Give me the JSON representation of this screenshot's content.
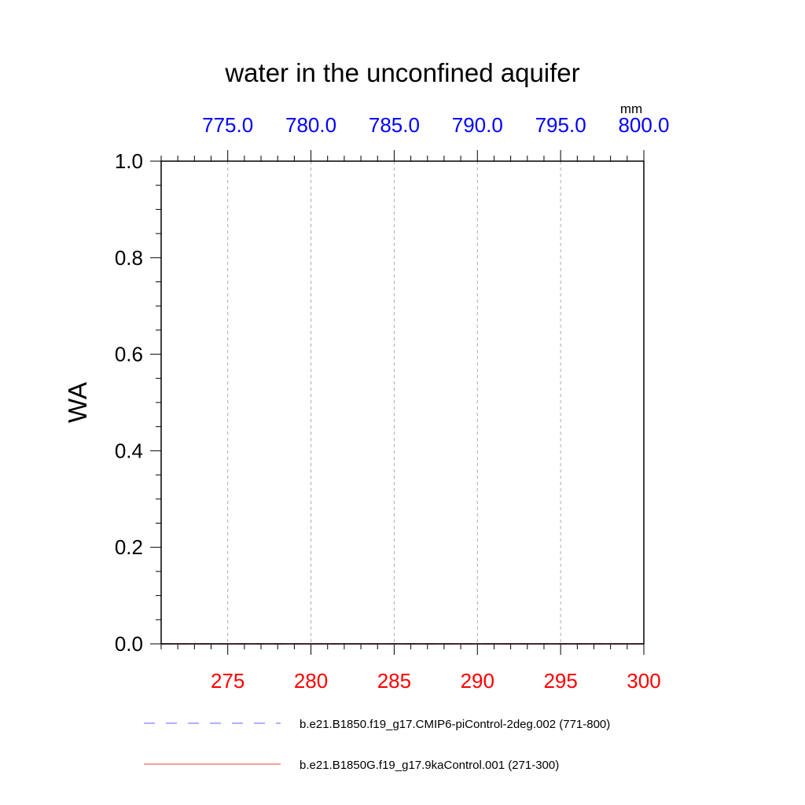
{
  "chart_data": {
    "type": "line",
    "title": "water in the unconfined aquifer",
    "ylabel": "WA",
    "top_axis_units": "mm",
    "ylim": [
      0,
      1
    ],
    "yticks": [
      "0.0",
      "0.2",
      "0.4",
      "0.6",
      "0.8",
      "1.0"
    ],
    "bottom_xlim": [
      271,
      300
    ],
    "bottom_xticks": [
      "275",
      "280",
      "285",
      "290",
      "295",
      "300"
    ],
    "top_xlim": [
      771,
      800
    ],
    "top_xticks": [
      "775.0",
      "780.0",
      "785.0",
      "790.0",
      "795.0",
      "800.0"
    ],
    "grid": "vertical dashed at major x ticks",
    "legend_placement": "bottom",
    "colors": {
      "bottom_axis": "#ff0000",
      "top_axis": "#0000ff",
      "series_top": "#8080ff",
      "series_bottom": "#ff6060"
    },
    "series": [
      {
        "name": "b.e21.B1850.f19_g17.CMIP6-piControl-2deg.002 (771-800)",
        "axis": "top",
        "style": "dashed",
        "x": [
          771,
          772,
          773,
          774,
          775,
          776,
          777,
          778,
          779,
          780,
          781,
          782,
          783,
          784,
          785,
          786,
          787,
          788,
          789,
          790,
          791,
          792,
          793,
          794,
          795,
          796,
          797,
          798,
          799,
          800
        ],
        "values": [
          0,
          0,
          0,
          0,
          0,
          0,
          0,
          0,
          0,
          0,
          0,
          0,
          0,
          0,
          0,
          0,
          0,
          0,
          0,
          0,
          0,
          0,
          0,
          0,
          0,
          0,
          0,
          0,
          0,
          0
        ]
      },
      {
        "name": "b.e21.B1850G.f19_g17.9kaControl.001 (271-300)",
        "axis": "bottom",
        "style": "solid",
        "x": [
          271,
          272,
          273,
          274,
          275,
          276,
          277,
          278,
          279,
          280,
          281,
          282,
          283,
          284,
          285,
          286,
          287,
          288,
          289,
          290,
          291,
          292,
          293,
          294,
          295,
          296,
          297,
          298,
          299,
          300
        ],
        "values": [
          0,
          0,
          0,
          0,
          0,
          0,
          0,
          0,
          0,
          0,
          0,
          0,
          0,
          0,
          0,
          0,
          0,
          0,
          0,
          0,
          0,
          0,
          0,
          0,
          0,
          0,
          0,
          0,
          0,
          0
        ]
      }
    ]
  }
}
